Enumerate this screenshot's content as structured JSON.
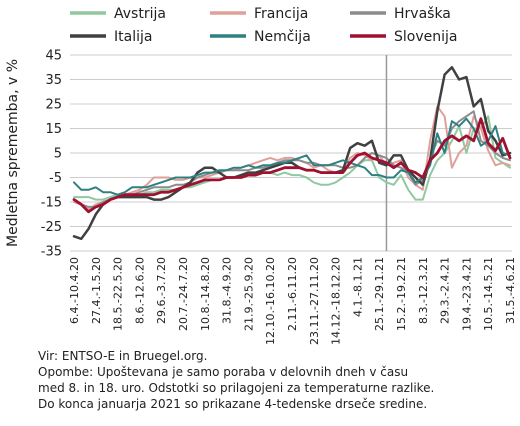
{
  "chart_data": {
    "type": "line",
    "ylabel": "Medletna sprememba, v %",
    "ylim": [
      -35,
      45
    ],
    "yticks": [
      45,
      35,
      25,
      15,
      5,
      -5,
      -15,
      -25,
      -35
    ],
    "x_tick_labels": [
      "6.4.-10.4.20",
      "27.4.-1.5.20",
      "18.5.-22.5.20",
      "8.6.-12.6.20",
      "29.6.-3.7.20",
      "20.7.-24.7.20",
      "10.8.-14.8.20",
      "31.8.-4.9.20",
      "21.9.-25.9.20",
      "12.10.-16.10.20",
      "2.11.-6.11.20",
      "23.11.-27.11.20",
      "14.12.-18.12.20",
      "4.1.-8.1.21",
      "25.1.-29.1.21",
      "15.2.-19.2.21",
      "8.3.-12.3.21",
      "29.3.-2.4.21",
      "19.4.-23.4.21",
      "10.5.-14.5.21",
      "31.5.-4.6.21"
    ],
    "x_tick_index": [
      0,
      3,
      6,
      9,
      12,
      15,
      18,
      21,
      24,
      27,
      30,
      33,
      36,
      39,
      42,
      45,
      48,
      51,
      54,
      57,
      60
    ],
    "vline_index": 43,
    "legend_position": "top",
    "grid": "horizontal",
    "series": [
      {
        "name": "Avstrija",
        "color": "#8fc9a1",
        "width": 2,
        "values": [
          -13,
          -13,
          -13,
          -14,
          -14,
          -13,
          -12,
          -13,
          -12,
          -12,
          -11,
          -11,
          -10,
          -10,
          -10,
          -9,
          -9,
          -8,
          -7,
          -6,
          -6,
          -5,
          -5,
          -4,
          -4,
          -3,
          -3,
          -3,
          -4,
          -3,
          -4,
          -4,
          -5,
          -7,
          -8,
          -8,
          -7,
          -5,
          -3,
          0,
          2,
          2,
          -5,
          -7,
          -8,
          -4,
          -10,
          -14,
          -14,
          -4,
          2,
          5,
          10,
          16,
          5,
          15,
          15,
          20,
          3,
          1,
          -1
        ]
      },
      {
        "name": "Francija",
        "color": "#e0a09a",
        "width": 2,
        "values": [
          -15,
          -16,
          -18,
          -16,
          -15,
          -14,
          -13,
          -12,
          -11,
          -10,
          -8,
          -5,
          -5,
          -5,
          -6,
          -6,
          -5,
          -5,
          -5,
          -4,
          -3,
          -2,
          -2,
          -1,
          0,
          1,
          2,
          3,
          2,
          3,
          3,
          2,
          1,
          -1,
          0,
          -2,
          -3,
          -2,
          3,
          5,
          4,
          2,
          4,
          0,
          1,
          2,
          -5,
          -8,
          -10,
          10,
          24,
          20,
          -1,
          5,
          8,
          20,
          15,
          6,
          0,
          1,
          0
        ]
      },
      {
        "name": "Hrvaška",
        "color": "#8c8c8c",
        "width": 2,
        "values": [
          -14,
          -16,
          -17,
          -17,
          -15,
          -14,
          -13,
          -12,
          -12,
          -11,
          -10,
          -9,
          -9,
          -9,
          -8,
          -8,
          -7,
          -5,
          -4,
          -3,
          -3,
          -2,
          -2,
          -2,
          -2,
          -1,
          -1,
          0,
          1,
          2,
          2,
          2,
          1,
          1,
          0,
          0,
          0,
          -1,
          -1,
          0,
          3,
          5,
          4,
          3,
          0,
          -1,
          -3,
          -8,
          -6,
          3,
          10,
          8,
          15,
          18,
          20,
          22,
          10,
          8,
          5,
          3,
          2
        ]
      },
      {
        "name": "Italija",
        "color": "#404040",
        "width": 2.5,
        "values": [
          -29,
          -30,
          -26,
          -20,
          -16,
          -14,
          -13,
          -13,
          -13,
          -13,
          -13,
          -14,
          -14,
          -13,
          -11,
          -9,
          -7,
          -3,
          -1,
          -1,
          -3,
          -5,
          -5,
          -4,
          -3,
          -3,
          -2,
          -1,
          0,
          1,
          1,
          -1,
          -2,
          -2,
          -3,
          -3,
          -3,
          -2,
          7,
          9,
          8,
          10,
          1,
          0,
          4,
          4,
          -2,
          -5,
          -8,
          2,
          22,
          37,
          40,
          35,
          36,
          24,
          27,
          14,
          10,
          4,
          5
        ]
      },
      {
        "name": "Nemčija",
        "color": "#2f8080",
        "width": 2,
        "values": [
          -7,
          -10,
          -10,
          -9,
          -11,
          -11,
          -12,
          -11,
          -9,
          -9,
          -9,
          -8,
          -7,
          -6,
          -5,
          -5,
          -5,
          -4,
          -3,
          -3,
          -2,
          -2,
          -1,
          -1,
          0,
          -1,
          0,
          0,
          1,
          1,
          2,
          3,
          4,
          0,
          0,
          0,
          1,
          2,
          1,
          0,
          -1,
          -4,
          -4,
          -5,
          -5,
          -2,
          -3,
          -7,
          -5,
          0,
          13,
          5,
          18,
          16,
          19,
          15,
          8,
          10,
          16,
          5,
          4
        ]
      },
      {
        "name": "Slovenija",
        "color": "#a01030",
        "width": 2.8,
        "values": [
          -14,
          -16,
          -19,
          -17,
          -16,
          -14,
          -13,
          -12,
          -12,
          -12,
          -12,
          -12,
          -11,
          -11,
          -10,
          -9,
          -8,
          -7,
          -6,
          -6,
          -6,
          -5,
          -5,
          -5,
          -4,
          -4,
          -3,
          -3,
          -2,
          -1,
          -1,
          -1,
          -2,
          -2,
          -3,
          -3,
          -3,
          -3,
          1,
          4,
          5,
          3,
          2,
          1,
          -1,
          1,
          -2,
          -3,
          -5,
          2,
          5,
          10,
          12,
          10,
          12,
          10,
          19,
          9,
          6,
          11,
          3
        ]
      }
    ]
  },
  "notes": [
    "Vir: ENTSO-E in Bruegel.org.",
    "Opombe: Upoštevana je samo poraba v delovnih dneh v času",
    "med 8. in 18. uro. Odstotki so prilagojeni za temperaturne razlike.",
    "Do konca januarja 2021 so prikazane 4-tedenske drseče sredine."
  ]
}
